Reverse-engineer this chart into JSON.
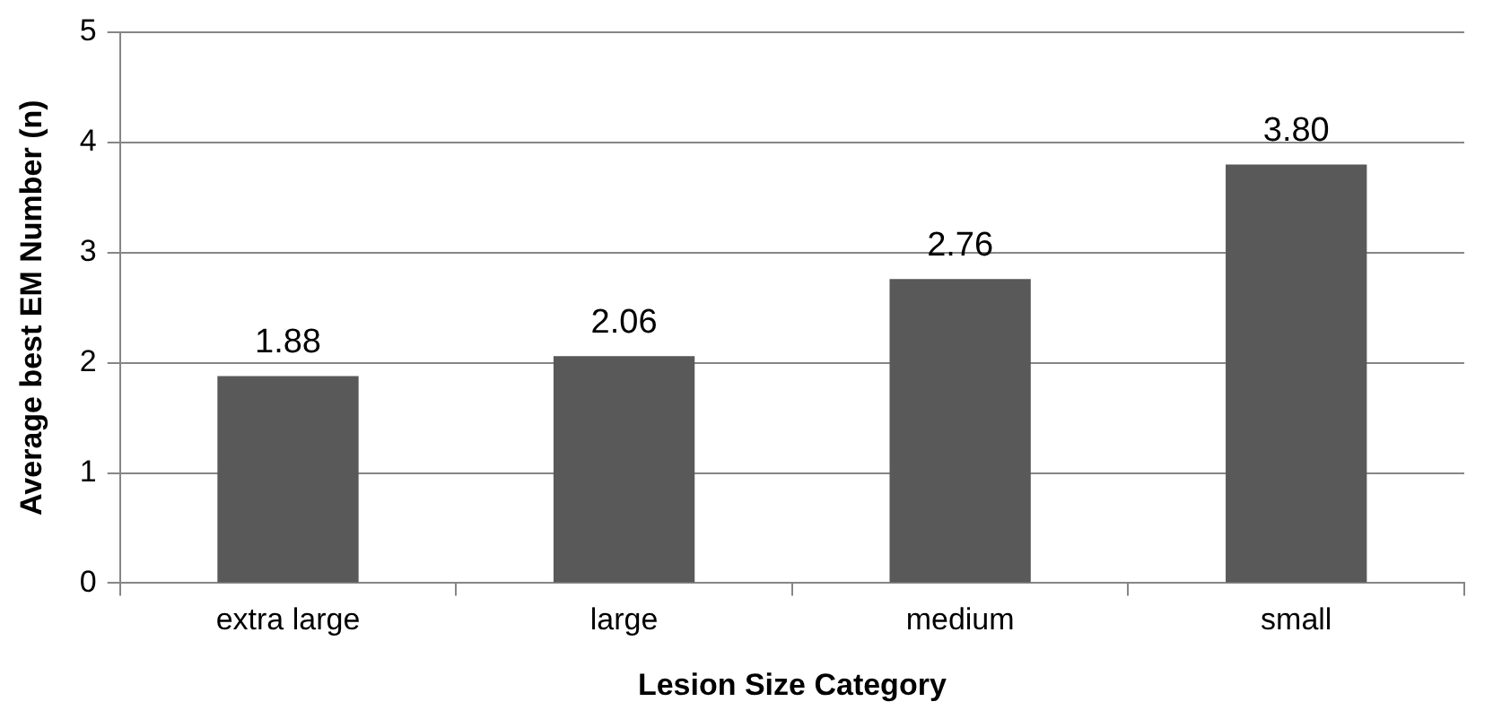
{
  "chart_data": {
    "type": "bar",
    "xlabel": "Lesion Size Category",
    "ylabel": "Average best EM Number (n)",
    "categories": [
      "extra large",
      "large",
      "medium",
      "small"
    ],
    "values": [
      1.88,
      2.06,
      2.76,
      3.8
    ],
    "value_labels": [
      "1.88",
      "2.06",
      "2.76",
      "3.80"
    ],
    "color": "#595959",
    "ylim": [
      0,
      5
    ],
    "yticks": [
      0,
      1,
      2,
      3,
      4,
      5
    ],
    "grid": "y",
    "legend": false
  }
}
